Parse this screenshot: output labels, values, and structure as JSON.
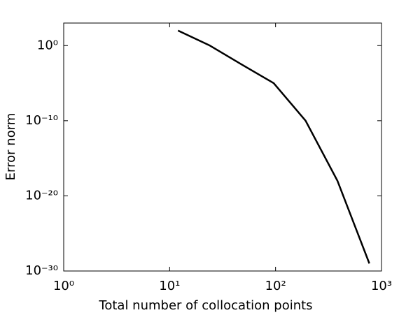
{
  "chart_data": {
    "type": "line",
    "xlabel": "Total number of collocation points",
    "ylabel": "Error norm",
    "x": [
      12,
      24,
      48,
      96,
      192,
      384,
      768
    ],
    "series": [
      {
        "color": "#000000",
        "values": [
          100.0,
          1,
          0.003,
          1e-05,
          1e-10,
          1e-18,
          1e-29
        ]
      }
    ],
    "xscale": "log",
    "yscale": "log",
    "xlim": [
      1,
      1000
    ],
    "ylim": [
      1e-30,
      1000.0
    ],
    "xticks": [
      {
        "value": 1,
        "label": "10⁰"
      },
      {
        "value": 10,
        "label": "10¹"
      },
      {
        "value": 100,
        "label": "10²"
      },
      {
        "value": 1000,
        "label": "10³"
      }
    ],
    "yticks": [
      {
        "value": 1e-30,
        "label": "10⁻³⁰"
      },
      {
        "value": 1e-20,
        "label": "10⁻²⁰"
      },
      {
        "value": 1e-10,
        "label": "10⁻¹⁰"
      },
      {
        "value": 1,
        "label": "10⁰"
      }
    ],
    "grid": false
  }
}
